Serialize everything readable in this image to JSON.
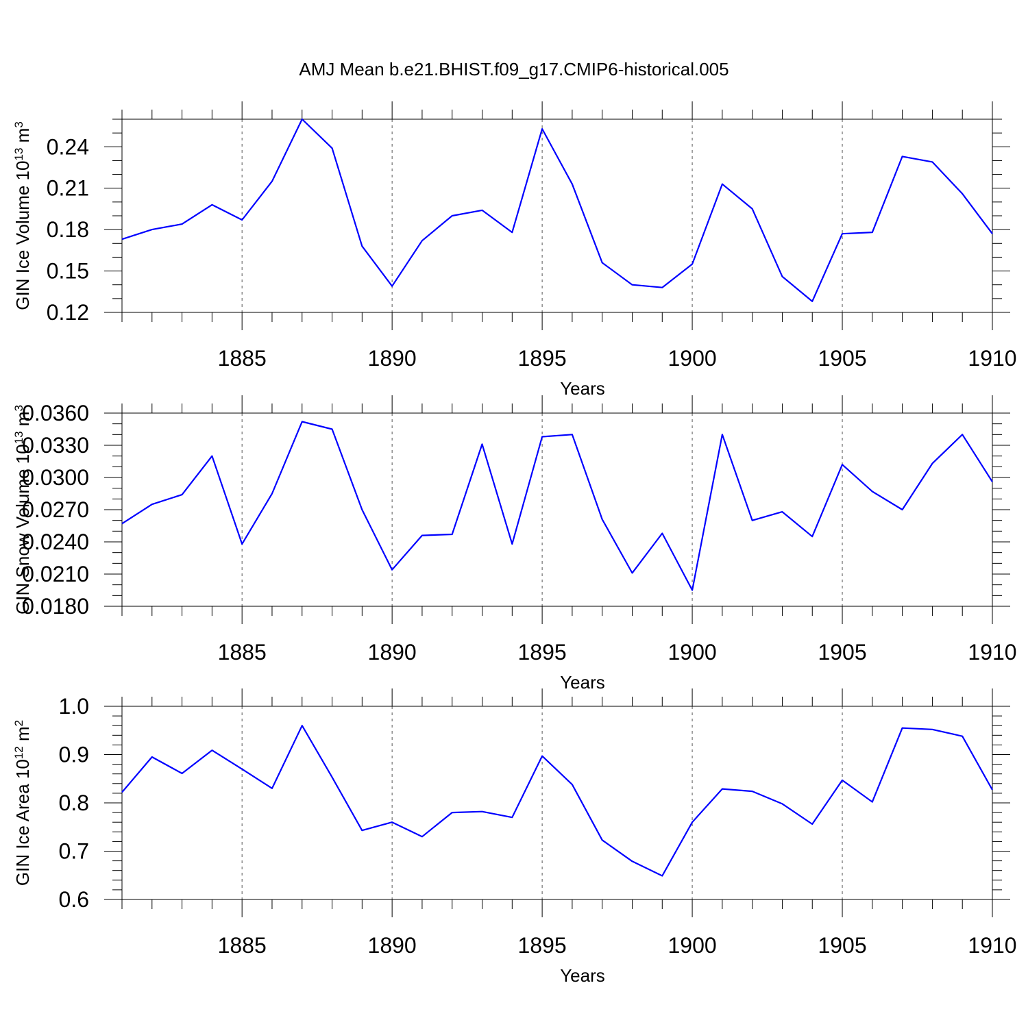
{
  "title": "AMJ Mean b.e21.BHIST.f09_g17.CMIP6-historical.005",
  "colors": {
    "line": "#0000ff",
    "axes": "#000000",
    "grid": "#555555",
    "background": "#ffffff"
  },
  "chart_data": [
    {
      "type": "line",
      "xlabel": "Years",
      "ylabel": {
        "main": "GIN Ice Volume 10",
        "exp": "13",
        "unit": " m",
        "unit_exp": "3"
      },
      "xlim": [
        1881,
        1910
      ],
      "ylim": [
        0.12,
        0.26
      ],
      "x_ticks": [
        1885,
        1890,
        1895,
        1900,
        1905,
        1910
      ],
      "y_ticks": [
        0.12,
        0.15,
        0.18,
        0.21,
        0.24
      ],
      "y_tick_labels": [
        "0.12",
        "0.15",
        "0.18",
        "0.21",
        "0.24"
      ],
      "x_minor_step": 1,
      "y_minor_step": 0.01,
      "grid": "vertical dashed at major x ticks",
      "x": [
        1881,
        1882,
        1883,
        1884,
        1885,
        1886,
        1887,
        1888,
        1889,
        1890,
        1891,
        1892,
        1893,
        1894,
        1895,
        1896,
        1897,
        1898,
        1899,
        1900,
        1901,
        1902,
        1903,
        1904,
        1905,
        1906,
        1907,
        1908,
        1909,
        1910
      ],
      "values": [
        0.173,
        0.18,
        0.184,
        0.198,
        0.187,
        0.215,
        0.26,
        0.239,
        0.168,
        0.139,
        0.172,
        0.19,
        0.194,
        0.178,
        0.253,
        0.213,
        0.156,
        0.14,
        0.138,
        0.155,
        0.213,
        0.195,
        0.146,
        0.128,
        0.177,
        0.178,
        0.233,
        0.229,
        0.206,
        0.177
      ]
    },
    {
      "type": "line",
      "xlabel": "Years",
      "ylabel": {
        "main": "GIN Snow Volume 10",
        "exp": "13",
        "unit": " m",
        "unit_exp": "3"
      },
      "xlim": [
        1881,
        1910
      ],
      "ylim": [
        0.018,
        0.036
      ],
      "x_ticks": [
        1885,
        1890,
        1895,
        1900,
        1905,
        1910
      ],
      "y_ticks": [
        0.018,
        0.021,
        0.024,
        0.027,
        0.03,
        0.033,
        0.036
      ],
      "y_tick_labels": [
        "0.0180",
        "0.0210",
        "0.0240",
        "0.0270",
        "0.0300",
        "0.0330",
        "0.0360"
      ],
      "x_minor_step": 1,
      "y_minor_step": 0.001,
      "grid": "vertical dashed at major x ticks",
      "x": [
        1881,
        1882,
        1883,
        1884,
        1885,
        1886,
        1887,
        1888,
        1889,
        1890,
        1891,
        1892,
        1893,
        1894,
        1895,
        1896,
        1897,
        1898,
        1899,
        1900,
        1901,
        1902,
        1903,
        1904,
        1905,
        1906,
        1907,
        1908,
        1909,
        1910
      ],
      "values": [
        0.0257,
        0.0275,
        0.0284,
        0.032,
        0.0238,
        0.0285,
        0.0352,
        0.0345,
        0.027,
        0.0214,
        0.0246,
        0.0247,
        0.0331,
        0.0238,
        0.0338,
        0.034,
        0.0261,
        0.0211,
        0.0248,
        0.0195,
        0.034,
        0.026,
        0.0268,
        0.0245,
        0.0312,
        0.0287,
        0.027,
        0.0313,
        0.034,
        0.0296
      ]
    },
    {
      "type": "line",
      "xlabel": "Years",
      "ylabel": {
        "main": "GIN Ice Area 10",
        "exp": "12",
        "unit": " m",
        "unit_exp": "2"
      },
      "xlim": [
        1881,
        1910
      ],
      "ylim": [
        0.6,
        1.0
      ],
      "x_ticks": [
        1885,
        1890,
        1895,
        1900,
        1905,
        1910
      ],
      "y_ticks": [
        0.6,
        0.7,
        0.8,
        0.9,
        1.0
      ],
      "y_tick_labels": [
        "0.6",
        "0.7",
        "0.8",
        "0.9",
        "1.0"
      ],
      "x_minor_step": 1,
      "y_minor_step": 0.02,
      "grid": "vertical dashed at major x ticks",
      "x": [
        1881,
        1882,
        1883,
        1884,
        1885,
        1886,
        1887,
        1888,
        1889,
        1890,
        1891,
        1892,
        1893,
        1894,
        1895,
        1896,
        1897,
        1898,
        1899,
        1900,
        1901,
        1902,
        1903,
        1904,
        1905,
        1906,
        1907,
        1908,
        1909,
        1910
      ],
      "values": [
        0.822,
        0.895,
        0.861,
        0.909,
        0.87,
        0.83,
        0.96,
        0.853,
        0.743,
        0.76,
        0.73,
        0.78,
        0.782,
        0.77,
        0.897,
        0.838,
        0.723,
        0.679,
        0.649,
        0.76,
        0.829,
        0.824,
        0.798,
        0.756,
        0.847,
        0.802,
        0.955,
        0.952,
        0.938,
        0.827
      ]
    }
  ]
}
